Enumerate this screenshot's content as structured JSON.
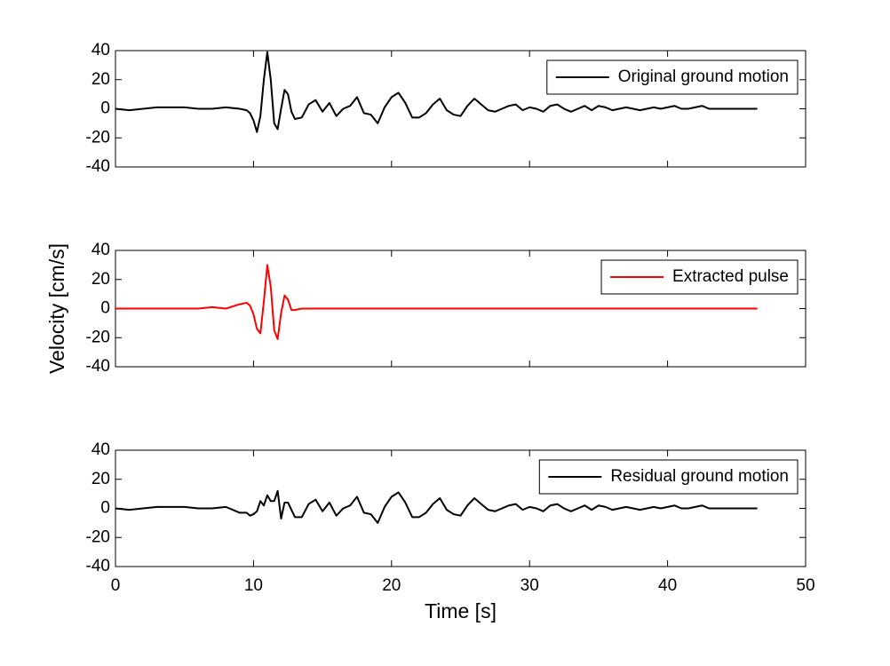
{
  "chart_data": [
    {
      "type": "line",
      "x": [
        0,
        1,
        2,
        3,
        4,
        5,
        6,
        7,
        8,
        9,
        9.5,
        9.75,
        10,
        10.25,
        10.5,
        10.75,
        11,
        11.25,
        11.5,
        11.75,
        12,
        12.25,
        12.5,
        12.75,
        13,
        13.5,
        14,
        14.5,
        15,
        15.5,
        16,
        16.5,
        17,
        17.5,
        18,
        18.5,
        19,
        19.5,
        20,
        20.5,
        21,
        21.5,
        22,
        22.5,
        23,
        23.5,
        24,
        24.5,
        25,
        25.5,
        26,
        26.5,
        27,
        27.5,
        28,
        28.5,
        29,
        29.5,
        30,
        30.5,
        31,
        31.5,
        32,
        32.5,
        33,
        33.5,
        34,
        34.5,
        35,
        35.5,
        36,
        36.5,
        37,
        37.5,
        38,
        38.5,
        39,
        39.5,
        40,
        40.5,
        41,
        41.5,
        42,
        42.5,
        43,
        43.5,
        44,
        44.5,
        45,
        45.5,
        46,
        46.5
      ],
      "series": [
        {
          "name": "Original ground motion",
          "color": "#000000",
          "values": [
            0,
            -1,
            0,
            1,
            1,
            1,
            0,
            0,
            1,
            0,
            -1,
            -3,
            -8,
            -16,
            -5,
            20,
            39,
            20,
            -10,
            -14,
            0,
            13,
            10,
            -2,
            -7,
            -6,
            3,
            6,
            -2,
            4,
            -5,
            0,
            2,
            8,
            -3,
            -4,
            -10,
            1,
            8,
            11,
            4,
            -6,
            -6,
            -3,
            3,
            7,
            -1,
            -4,
            -5,
            2,
            7,
            3,
            -1,
            -2,
            0,
            2,
            3,
            -1,
            1,
            0,
            -2,
            2,
            3,
            0,
            -2,
            0,
            2,
            -1,
            2,
            1,
            -1,
            0,
            1,
            0,
            -1,
            0,
            1,
            0,
            1,
            2,
            0,
            0,
            1,
            2,
            0,
            0,
            0,
            0,
            0,
            0,
            0,
            0
          ]
        }
      ],
      "xlim": [
        0,
        50
      ],
      "xticks": [
        0,
        10,
        20,
        30,
        40,
        50
      ],
      "ylim": [
        -40,
        40
      ],
      "yticks": [
        -40,
        -20,
        0,
        20,
        40
      ],
      "legend": "upper right"
    },
    {
      "type": "line",
      "ylabel": "Velocity [cm/s]",
      "x": [
        0,
        1,
        2,
        3,
        4,
        5,
        6,
        7,
        8,
        9,
        9.5,
        9.75,
        10,
        10.25,
        10.5,
        10.75,
        11,
        11.25,
        11.5,
        11.75,
        12,
        12.25,
        12.5,
        12.75,
        13,
        13.5,
        14,
        14.5,
        15,
        15.5,
        16,
        16.5,
        17,
        17.5,
        18,
        18.5,
        19,
        19.5,
        20,
        20.5,
        21,
        21.5,
        22,
        22.5,
        23,
        23.5,
        24,
        24.5,
        25,
        25.5,
        26,
        26.5,
        27,
        27.5,
        28,
        28.5,
        29,
        29.5,
        30,
        30.5,
        31,
        31.5,
        32,
        32.5,
        33,
        33.5,
        34,
        34.5,
        35,
        35.5,
        36,
        36.5,
        37,
        37.5,
        38,
        38.5,
        39,
        39.5,
        40,
        40.5,
        41,
        41.5,
        42,
        42.5,
        43,
        43.5,
        44,
        44.5,
        45,
        45.5,
        46,
        46.5
      ],
      "series": [
        {
          "name": "Extracted pulse",
          "color": "#ff0000",
          "values": [
            0,
            0,
            0,
            0,
            0,
            0,
            0,
            1,
            0,
            3,
            4,
            2,
            -4,
            -14,
            -17,
            5,
            30,
            15,
            -15,
            -21,
            -3,
            9,
            6,
            -1,
            -1,
            0,
            0,
            0,
            0,
            0,
            0,
            0,
            0,
            0,
            0,
            0,
            0,
            0,
            0,
            0,
            0,
            0,
            0,
            0,
            0,
            0,
            0,
            0,
            0,
            0,
            0,
            0,
            0,
            0,
            0,
            0,
            0,
            0,
            0,
            0,
            0,
            0,
            0,
            0,
            0,
            0,
            0,
            0,
            0,
            0,
            0,
            0,
            0,
            0,
            0,
            0,
            0,
            0,
            0,
            0,
            0,
            0,
            0,
            0,
            0,
            0,
            0,
            0,
            0,
            0,
            0,
            0
          ]
        }
      ],
      "xlim": [
        0,
        50
      ],
      "xticks": [
        0,
        10,
        20,
        30,
        40,
        50
      ],
      "ylim": [
        -40,
        40
      ],
      "yticks": [
        -40,
        -20,
        0,
        20,
        40
      ],
      "legend": "upper right"
    },
    {
      "type": "line",
      "xlabel": "Time [s]",
      "x": [
        0,
        1,
        2,
        3,
        4,
        5,
        6,
        7,
        8,
        9,
        9.5,
        9.75,
        10,
        10.25,
        10.5,
        10.75,
        11,
        11.25,
        11.5,
        11.75,
        12,
        12.25,
        12.5,
        12.75,
        13,
        13.5,
        14,
        14.5,
        15,
        15.5,
        16,
        16.5,
        17,
        17.5,
        18,
        18.5,
        19,
        19.5,
        20,
        20.5,
        21,
        21.5,
        22,
        22.5,
        23,
        23.5,
        24,
        24.5,
        25,
        25.5,
        26,
        26.5,
        27,
        27.5,
        28,
        28.5,
        29,
        29.5,
        30,
        30.5,
        31,
        31.5,
        32,
        32.5,
        33,
        33.5,
        34,
        34.5,
        35,
        35.5,
        36,
        36.5,
        37,
        37.5,
        38,
        38.5,
        39,
        39.5,
        40,
        40.5,
        41,
        41.5,
        42,
        42.5,
        43,
        43.5,
        44,
        44.5,
        45,
        45.5,
        46,
        46.5
      ],
      "series": [
        {
          "name": "Residual ground motion",
          "color": "#000000",
          "values": [
            0,
            -1,
            0,
            1,
            1,
            1,
            0,
            0,
            1,
            -3,
            -3,
            -5,
            -4,
            -2,
            5,
            2,
            9,
            5,
            5,
            12,
            -7,
            4,
            4,
            -1,
            -6,
            -6,
            3,
            6,
            -2,
            4,
            -5,
            0,
            2,
            8,
            -3,
            -4,
            -10,
            1,
            8,
            11,
            4,
            -6,
            -6,
            -3,
            3,
            7,
            -1,
            -4,
            -5,
            2,
            7,
            3,
            -1,
            -2,
            0,
            2,
            3,
            -1,
            1,
            0,
            -2,
            2,
            3,
            0,
            -2,
            0,
            2,
            -1,
            2,
            1,
            -1,
            0,
            1,
            0,
            -1,
            0,
            1,
            0,
            1,
            2,
            0,
            0,
            1,
            2,
            0,
            0,
            0,
            0,
            0,
            0,
            0,
            0
          ]
        }
      ],
      "xlim": [
        0,
        50
      ],
      "xticks": [
        0,
        10,
        20,
        30,
        40,
        50
      ],
      "ylim": [
        -40,
        40
      ],
      "yticks": [
        -40,
        -20,
        0,
        20,
        40
      ],
      "legend": "upper right"
    }
  ]
}
